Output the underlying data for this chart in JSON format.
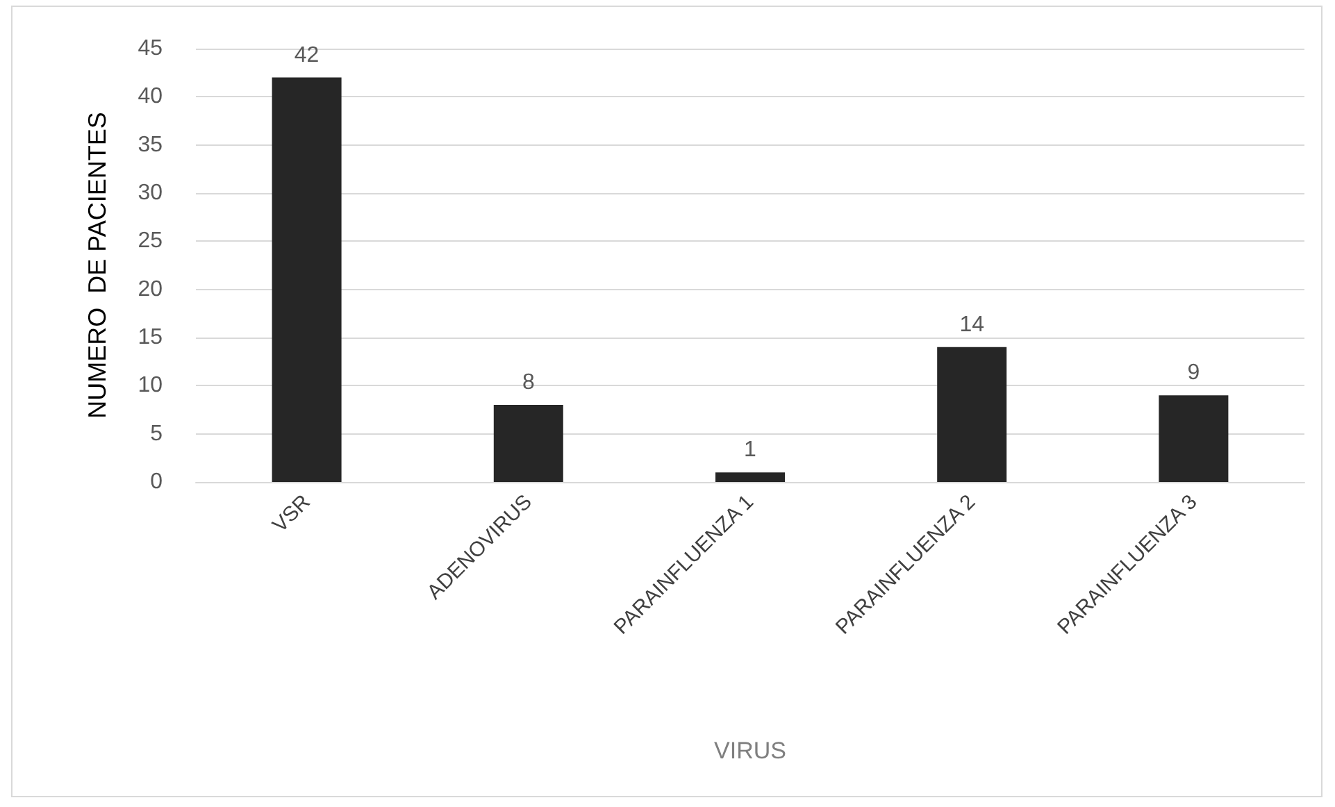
{
  "chart_data": {
    "type": "bar",
    "xlabel": "VIRUS",
    "ylabel": "NUMERO  DE PACIENTES",
    "categories": [
      "VSR",
      "ADENOVIRUS",
      "PARAINFLUENZA 1",
      "PARAINFLUENZA 2",
      "PARAINFLUENZA 3"
    ],
    "values": [
      42,
      8,
      1,
      14,
      9
    ],
    "color": "#262626",
    "ylim": [
      0,
      45
    ],
    "yticks": [
      0,
      5,
      10,
      15,
      20,
      25,
      30,
      35,
      40,
      45
    ],
    "grid": "y",
    "data_labels": true
  }
}
